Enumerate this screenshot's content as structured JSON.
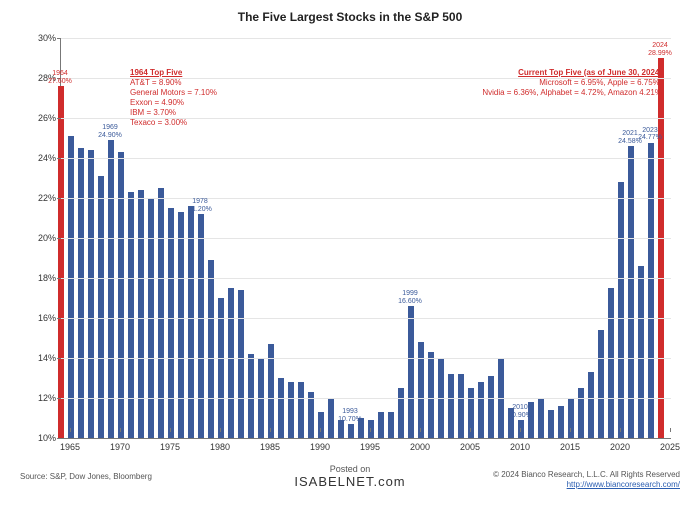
{
  "title": "The Five Largest Stocks in the S&P 500",
  "chart": {
    "type": "bar",
    "ylim": [
      10,
      30
    ],
    "ytick_step": 2,
    "y_suffix": "%",
    "grid_color": "#e5e5e5",
    "axis_color": "#777777",
    "background_color": "#ffffff",
    "title_fontsize": 12,
    "tick_fontsize": 9,
    "bar_width_ratio": 0.68,
    "default_bar_color": "#3b5a9a",
    "highlight_bar_color": "#d02c2c",
    "x_start": 1964,
    "x_end": 2025,
    "x_tick_step": 5,
    "data": [
      {
        "year": 1964,
        "value": 27.6,
        "highlight": true,
        "callout": {
          "l1": "1964",
          "l2": "27.60%",
          "color": "red"
        }
      },
      {
        "year": 1965,
        "value": 25.1
      },
      {
        "year": 1966,
        "value": 24.5
      },
      {
        "year": 1967,
        "value": 24.4
      },
      {
        "year": 1968,
        "value": 23.1
      },
      {
        "year": 1969,
        "value": 24.9,
        "callout": {
          "l1": "1969",
          "l2": "24.90%"
        }
      },
      {
        "year": 1970,
        "value": 24.3
      },
      {
        "year": 1971,
        "value": 22.3
      },
      {
        "year": 1972,
        "value": 22.4
      },
      {
        "year": 1973,
        "value": 22.0
      },
      {
        "year": 1974,
        "value": 22.5
      },
      {
        "year": 1975,
        "value": 21.5
      },
      {
        "year": 1976,
        "value": 21.3
      },
      {
        "year": 1977,
        "value": 21.6
      },
      {
        "year": 1978,
        "value": 21.2,
        "callout": {
          "l1": "1978",
          "l2": "21.20%"
        }
      },
      {
        "year": 1979,
        "value": 18.9
      },
      {
        "year": 1980,
        "value": 17.0
      },
      {
        "year": 1981,
        "value": 17.5
      },
      {
        "year": 1982,
        "value": 17.4
      },
      {
        "year": 1983,
        "value": 14.2
      },
      {
        "year": 1984,
        "value": 14.0
      },
      {
        "year": 1985,
        "value": 14.7
      },
      {
        "year": 1986,
        "value": 13.0
      },
      {
        "year": 1987,
        "value": 12.8
      },
      {
        "year": 1988,
        "value": 12.8
      },
      {
        "year": 1989,
        "value": 12.3
      },
      {
        "year": 1990,
        "value": 11.3
      },
      {
        "year": 1991,
        "value": 12.0
      },
      {
        "year": 1992,
        "value": 10.9
      },
      {
        "year": 1993,
        "value": 10.7,
        "callout": {
          "l1": "1993",
          "l2": "10.70%"
        }
      },
      {
        "year": 1994,
        "value": 11.0
      },
      {
        "year": 1995,
        "value": 10.9
      },
      {
        "year": 1996,
        "value": 11.3
      },
      {
        "year": 1997,
        "value": 11.3
      },
      {
        "year": 1998,
        "value": 12.5
      },
      {
        "year": 1999,
        "value": 16.6,
        "callout": {
          "l1": "1999",
          "l2": "16.60%"
        }
      },
      {
        "year": 2000,
        "value": 14.8
      },
      {
        "year": 2001,
        "value": 14.3
      },
      {
        "year": 2002,
        "value": 14.0
      },
      {
        "year": 2003,
        "value": 13.2
      },
      {
        "year": 2004,
        "value": 13.2
      },
      {
        "year": 2005,
        "value": 12.5
      },
      {
        "year": 2006,
        "value": 12.8
      },
      {
        "year": 2007,
        "value": 13.1
      },
      {
        "year": 2008,
        "value": 14.0
      },
      {
        "year": 2009,
        "value": 11.5
      },
      {
        "year": 2010,
        "value": 10.9,
        "callout": {
          "l1": "2010",
          "l2": "10.90%"
        }
      },
      {
        "year": 2011,
        "value": 11.8
      },
      {
        "year": 2012,
        "value": 12.0
      },
      {
        "year": 2013,
        "value": 11.4
      },
      {
        "year": 2014,
        "value": 11.6
      },
      {
        "year": 2015,
        "value": 12.0
      },
      {
        "year": 2016,
        "value": 12.5
      },
      {
        "year": 2017,
        "value": 13.3
      },
      {
        "year": 2018,
        "value": 15.4
      },
      {
        "year": 2019,
        "value": 17.5
      },
      {
        "year": 2020,
        "value": 22.8
      },
      {
        "year": 2021,
        "value": 24.58,
        "callout": {
          "l1": "2021",
          "l2": "24.58%"
        }
      },
      {
        "year": 2022,
        "value": 18.6
      },
      {
        "year": 2023,
        "value": 24.77,
        "callout": {
          "l1": "2023",
          "l2": "24.77%"
        }
      },
      {
        "year": 2024,
        "value": 28.99,
        "highlight": true,
        "callout": {
          "l1": "2024",
          "l2": "28.99%",
          "color": "red"
        }
      }
    ]
  },
  "legend_left": {
    "head": "1964 Top Five",
    "lines": [
      "AT&T = 8.90%",
      "General Motors = 7.10%",
      "Exxon = 4.90%",
      "IBM = 3.70%",
      "Texaco = 3.00%"
    ]
  },
  "legend_right": {
    "head": "Current Top Five (as of June 30, 2024)",
    "lines": [
      "Microsoft = 6.95%, Apple = 6.75%,",
      "Nvidia = 6.36%, Alphabet = 4.72%, Amazon 4.21%"
    ]
  },
  "footer": {
    "source": "Source: S&P, Dow Jones, Bloomberg",
    "posted_label": "Posted on",
    "brand": "ISABELNET.com",
    "copyright": "© 2024 Bianco Research, L.L.C. All Rights Reserved",
    "link": "http://www.biancoresearch.com/"
  }
}
